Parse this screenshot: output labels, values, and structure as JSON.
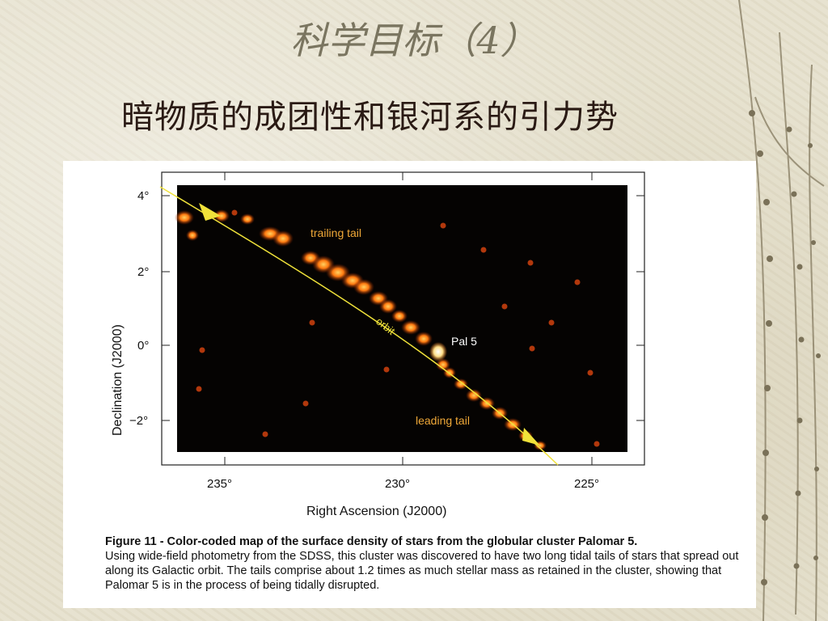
{
  "slide": {
    "title": "科学目标（4）",
    "subtitle": "暗物质的成团性和银河系的引力势"
  },
  "figure": {
    "y_axis_label": "Declination (J2000)",
    "x_axis_label": "Right Ascension (J2000)",
    "y_ticks": [
      "4°",
      "2°",
      "0°",
      "−2°"
    ],
    "x_ticks": [
      "235°",
      "230°",
      "225°"
    ],
    "annotations": {
      "trailing": "trailing tail",
      "orbit": "orbit",
      "cluster": "Pal 5",
      "leading": "leading tail"
    },
    "caption_title": "Figure 11 - Color-coded map of the surface density of stars from the globular cluster Palomar 5.",
    "caption_body": "Using wide-field photometry from the SDSS, this cluster was discovered to have two long tidal tails of stars that spread out along its Galactic orbit. The tails comprise about 1.2 times as much stellar mass as retained in the cluster, showing that Palomar 5 is in the process of being tidally disrupted."
  },
  "colors": {
    "map_background": "#050302",
    "tail_color": "#ff7a10",
    "orbit_color": "#f0e23a",
    "label_color": "#f0a838"
  }
}
